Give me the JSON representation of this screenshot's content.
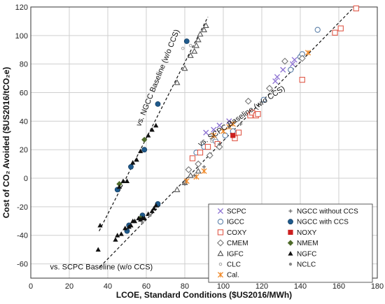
{
  "chart_data": {
    "type": "scatter",
    "xlabel": "LCOE, Standard Conditions ($US2016/MWh)",
    "ylabel": "Cost of CO₂ Avoided ($US2016/tCO₂e)",
    "xlim": [
      0,
      180
    ],
    "ylim": [
      -70,
      120
    ],
    "xticks": [
      0,
      20,
      40,
      60,
      80,
      100,
      120,
      140,
      160,
      180
    ],
    "yticks": [
      -60,
      -40,
      -20,
      0,
      20,
      40,
      60,
      80,
      100,
      120
    ],
    "grid": true,
    "legend_position": "bottom-right",
    "annotations": [
      {
        "text": "vs. NGCC Baseline (w/o CCS)",
        "x": 57,
        "y": 36,
        "angle_deg": -68
      },
      {
        "text": "vs. SCPC Baseline (w/o CCS)",
        "x": 88,
        "y": 22,
        "angle_deg": -34
      },
      {
        "text": "vs. SCPC Baseline (w/o CCS)",
        "x": 10,
        "y": -64,
        "angle_deg": 0
      }
    ],
    "trendlines": [
      {
        "name": "NGCC baseline",
        "x": [
          35.5,
          92
        ],
        "y": [
          -37,
          113
        ]
      },
      {
        "name": "SCPC baseline",
        "x": [
          36,
          168
        ],
        "y": [
          -62,
          120
        ]
      }
    ],
    "series": [
      {
        "name": "SCPC",
        "marker": "x",
        "color": "#8a6fd1",
        "points": [
          [
            91,
            32
          ],
          [
            95,
            34
          ],
          [
            98,
            37
          ],
          [
            103,
            40
          ],
          [
            127,
            68
          ],
          [
            128,
            71
          ],
          [
            131,
            76
          ],
          [
            136,
            80
          ],
          [
            137,
            83
          ]
        ]
      },
      {
        "name": "IGCC",
        "marker": "circle-open",
        "color": "#5b7fa8",
        "points": [
          [
            86,
            18
          ],
          [
            90,
            22
          ],
          [
            96,
            26
          ],
          [
            101,
            30
          ],
          [
            105,
            33
          ],
          [
            121,
            55
          ],
          [
            135,
            76
          ],
          [
            140,
            85
          ],
          [
            141,
            87
          ],
          [
            149,
            104
          ]
        ]
      },
      {
        "name": "COXY",
        "marker": "square-open",
        "color": "#e05a4a",
        "points": [
          [
            84,
            14
          ],
          [
            88,
            18
          ],
          [
            92,
            22
          ],
          [
            97,
            24
          ],
          [
            106,
            28
          ],
          [
            108,
            32
          ],
          [
            114,
            44
          ],
          [
            115,
            46
          ],
          [
            117,
            44
          ],
          [
            118,
            45
          ],
          [
            141,
            69
          ],
          [
            158,
            102
          ],
          [
            161,
            105
          ],
          [
            169,
            119
          ]
        ]
      },
      {
        "name": "CMEM",
        "marker": "diamond-open",
        "color": "#777777",
        "points": [
          [
            82,
            6
          ],
          [
            87,
            10
          ],
          [
            93,
            16
          ],
          [
            98,
            22
          ],
          [
            113,
            54
          ],
          [
            124,
            63
          ],
          [
            132,
            82
          ],
          [
            141,
            84
          ]
        ]
      },
      {
        "name": "IGFC",
        "marker": "triangle-open",
        "color": "#555555",
        "points": [
          [
            76,
            -8
          ],
          [
            80,
            -3
          ],
          [
            83,
            2
          ],
          [
            87,
            5
          ],
          [
            76,
            67
          ],
          [
            80,
            77
          ],
          [
            83,
            86
          ],
          [
            85,
            89
          ],
          [
            86,
            93
          ],
          [
            87,
            97
          ],
          [
            88,
            101
          ],
          [
            90,
            104
          ],
          [
            91,
            107
          ]
        ]
      },
      {
        "name": "CLC",
        "marker": "dot-open",
        "color": "#999999",
        "points": [
          [
            79,
            91
          ],
          [
            83,
            93
          ],
          [
            94,
            26
          ],
          [
            96,
            28
          ]
        ]
      },
      {
        "name": "Cal.",
        "marker": "x-asterisk",
        "color": "#f08a2a",
        "points": [
          [
            81,
            -2
          ],
          [
            86,
            1
          ],
          [
            90,
            5
          ],
          [
            95,
            30
          ],
          [
            100,
            33
          ],
          [
            103,
            36
          ],
          [
            105,
            38
          ],
          [
            144,
            88
          ]
        ]
      },
      {
        "name": "NGCC without CCS",
        "marker": "plus",
        "color": "#666666",
        "points": [
          [
            80,
            -4
          ],
          [
            85,
            2
          ],
          [
            90,
            8
          ],
          [
            98,
            24
          ],
          [
            103,
            36
          ],
          [
            109,
            38
          ]
        ]
      },
      {
        "name": "NGCC with CCS",
        "marker": "circle-filled",
        "color": "#1f5a8c",
        "points": [
          [
            45,
            -8
          ],
          [
            50,
            -37
          ],
          [
            51,
            -33
          ],
          [
            52,
            8
          ],
          [
            58,
            -26
          ],
          [
            59,
            20
          ],
          [
            66,
            52
          ],
          [
            66,
            -18
          ],
          [
            81,
            96
          ]
        ]
      },
      {
        "name": "NOXY",
        "marker": "square-filled",
        "color": "#cc1f1f",
        "points": [
          [
            105,
            30
          ]
        ]
      },
      {
        "name": "NMEM",
        "marker": "diamond-filled",
        "color": "#4f6b2a",
        "points": [
          [
            46,
            -4
          ],
          [
            57,
            -28
          ],
          [
            59,
            27
          ]
        ]
      },
      {
        "name": "NGFC",
        "marker": "triangle-filled",
        "color": "#111111",
        "points": [
          [
            35,
            -50
          ],
          [
            36,
            -33
          ],
          [
            44,
            -43
          ],
          [
            45,
            -40
          ],
          [
            46,
            -6
          ],
          [
            47,
            -39
          ],
          [
            48,
            -2
          ],
          [
            49,
            -35
          ],
          [
            50,
            -2
          ],
          [
            51,
            -34
          ],
          [
            52,
            -33
          ],
          [
            53,
            -30
          ],
          [
            53,
            11
          ],
          [
            54,
            -30
          ],
          [
            55,
            13
          ],
          [
            56,
            -28
          ],
          [
            57,
            -29
          ],
          [
            57,
            19
          ],
          [
            58,
            -28
          ],
          [
            59,
            -28
          ],
          [
            61,
            30
          ],
          [
            61,
            -25
          ],
          [
            63,
            34
          ],
          [
            63,
            -23
          ],
          [
            64,
            -21
          ],
          [
            65,
            37
          ],
          [
            65,
            -19
          ]
        ]
      },
      {
        "name": "NCLC",
        "marker": "dot-filled",
        "color": "#888888",
        "points": [
          [
            58,
            -31
          ],
          [
            62,
            -26
          ]
        ]
      }
    ],
    "legend": {
      "col1": [
        "SCPC",
        "IGCC",
        "COXY",
        "CMEM",
        "IGFC",
        "CLC",
        "Cal."
      ],
      "col2": [
        "NGCC without CCS",
        "NGCC with CCS",
        "NOXY",
        "NMEM",
        "NGFC",
        "NCLC"
      ]
    }
  }
}
